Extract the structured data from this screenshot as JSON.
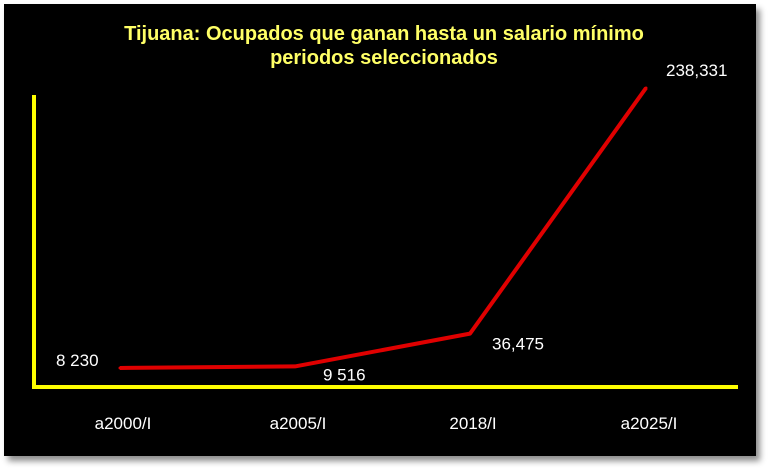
{
  "chart_data": {
    "type": "line",
    "title_line1": "Tijuana: Ocupados que ganan hasta un salario mínimo",
    "title_line2": "periodos seleccionados",
    "categories": [
      "a2000/I",
      "a2005/I",
      "2018/I",
      "a2025/I"
    ],
    "series": [
      {
        "values": [
          8230,
          9516,
          36475,
          238331
        ]
      }
    ],
    "data_labels": [
      "8 230",
      "9 516",
      "36,475",
      "238,331"
    ],
    "grid": false,
    "colors": {
      "line": "#e00000",
      "axis": "#ffff00",
      "title": "#ffff66",
      "background": "#000000",
      "text": "#ffffff"
    }
  }
}
